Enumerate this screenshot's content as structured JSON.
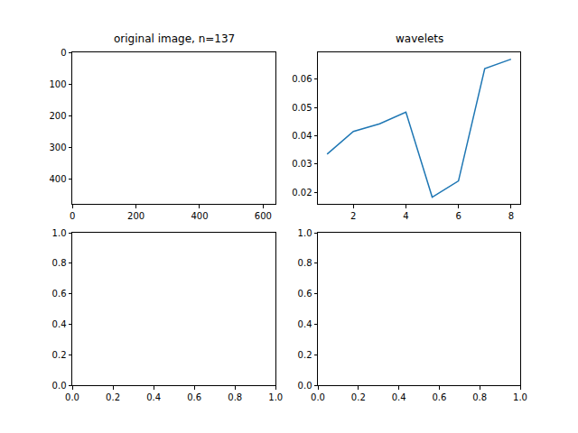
{
  "chart_data": [
    {
      "type": "image",
      "title": "original image, n=137",
      "xlim": [
        -0.5,
        639.5
      ],
      "xticks": [
        0,
        200,
        400,
        600
      ],
      "ylim": [
        479.5,
        -0.5
      ],
      "yticks": [
        0,
        100,
        200,
        300,
        400
      ]
    },
    {
      "type": "line",
      "title": "wavelets",
      "x": [
        1,
        2,
        3,
        4,
        5,
        6,
        7,
        8
      ],
      "values": [
        0.0335,
        0.0415,
        0.0442,
        0.0483,
        0.0183,
        0.024,
        0.0637,
        0.067
      ],
      "color": "#1f77b4",
      "xlim": [
        0.65,
        8.35
      ],
      "xticks": [
        2,
        4,
        6,
        8
      ],
      "ylim": [
        0.0159,
        0.0694
      ],
      "yticks": [
        0.02,
        0.03,
        0.04,
        0.05,
        0.06
      ]
    },
    {
      "type": "empty",
      "xlim": [
        0,
        1
      ],
      "xticks": [
        {
          "value": 0,
          "label": "0.0"
        },
        0.2,
        0.4,
        0.6,
        0.8,
        {
          "value": 1,
          "label": "1.0"
        }
      ],
      "ylim": [
        0,
        1
      ],
      "yticks": [
        {
          "value": 0,
          "label": "0.0"
        },
        0.2,
        0.4,
        0.6,
        0.8,
        {
          "value": 1,
          "label": "1.0"
        }
      ]
    },
    {
      "type": "empty",
      "xlim": [
        0,
        1
      ],
      "xticks": [
        {
          "value": 0,
          "label": "0.0"
        },
        0.2,
        0.4,
        0.6,
        0.8,
        {
          "value": 1,
          "label": "1.0"
        }
      ],
      "ylim": [
        0,
        1
      ],
      "yticks": [
        {
          "value": 0,
          "label": "0.0"
        },
        0.2,
        0.4,
        0.6,
        0.8,
        {
          "value": 1,
          "label": "1.0"
        }
      ]
    }
  ]
}
